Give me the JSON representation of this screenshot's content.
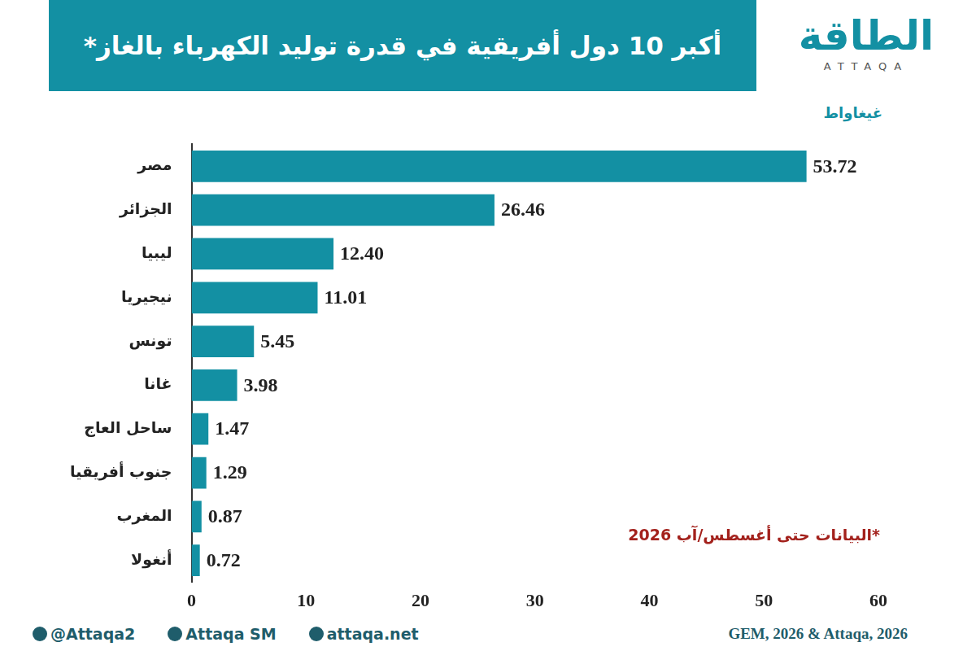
{
  "chart_data": {
    "type": "bar",
    "orientation": "horizontal",
    "title": "أكبر 10 دول أفريقية في قدرة توليد الكهرباء بالغاز*",
    "xlabel": "غيغاواط",
    "categories": [
      "مصر",
      "الجزائر",
      "ليبيا",
      "نيجيريا",
      "تونس",
      "غانا",
      "ساحل العاج",
      "جنوب أفريقيا",
      "المغرب",
      "أنغولا"
    ],
    "values": [
      53.72,
      26.46,
      12.4,
      11.01,
      5.45,
      3.98,
      1.47,
      1.29,
      0.87,
      0.72
    ],
    "value_labels": [
      "53.72",
      "26.46",
      "12.40",
      "11.01",
      "5.45",
      "3.98",
      "1.47",
      "1.29",
      "0.87",
      "0.72"
    ],
    "data_labels": true,
    "color": "#1390a3",
    "xlim": [
      0,
      60
    ],
    "xticks": [
      0,
      10,
      20,
      30,
      40,
      50,
      60
    ],
    "grid": false,
    "annotations": [
      "*البيانات حتى أغسطس/آب 2026"
    ],
    "source": "GEM, 2026 & Attaqa, 2026"
  },
  "branding": {
    "logo": "الطاقة",
    "logo_subtitle": "ATTAQA",
    "social": [
      "@Attaqa2",
      "Attaqa SM",
      "attaqa.net"
    ]
  }
}
